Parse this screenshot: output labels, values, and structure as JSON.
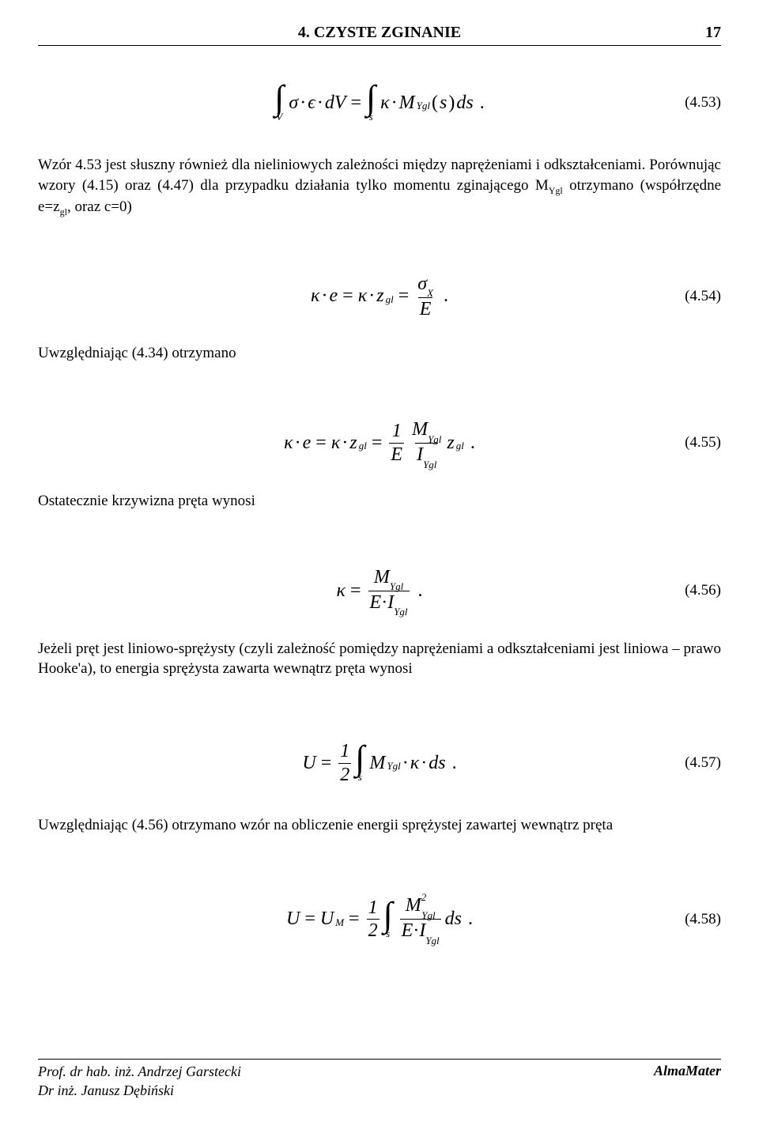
{
  "header": {
    "title": "4. CZYSTE ZGINANIE",
    "page": "17"
  },
  "eq453": {
    "num": "(4.53)",
    "int1_lim": "V",
    "t1a": "σ",
    "t1b": "·",
    "t1c": "ϵ",
    "t1d": "·",
    "t1e": "dV",
    "eqs": "=",
    "int2_lim": "s",
    "t2a": "κ",
    "t2b": "·",
    "t2c": "M",
    "t2sub": "Ygl",
    "lp": "(",
    "t2d": "s",
    "rp": ")",
    "t2e": "ds",
    "dot": "."
  },
  "p1": "Wzór 4.53 jest słuszny również dla nieliniowych zależności między naprężeniami i odkształceniami. Porównując wzory (4.15) oraz (4.47) dla przypadku działania tylko momentu zginającego M",
  "p1_sub": "Ygl",
  "p1b": " otrzymano (współrzędne e=z",
  "p1b_sub": "gl",
  "p1c": ", oraz c=0)",
  "eq454": {
    "num": "(4.54)",
    "a": "κ",
    "b": "·",
    "c": "e",
    "d": "=",
    "e": "κ",
    "f": "·",
    "g": "z",
    "gsub": "gl",
    "h": "=",
    "frac_num_a": "σ",
    "frac_num_sub": "X",
    "frac_den": "E",
    "dot": "."
  },
  "p2": "Uwzględniając (4.34) otrzymano",
  "eq455": {
    "num": "(4.55)",
    "a": "κ",
    "b": "·",
    "c": "e",
    "d": "=",
    "e": "κ",
    "f": "·",
    "g": "z",
    "gsub": "gl",
    "h": "=",
    "f1_num": "1",
    "f1_den": "E",
    "f2_num_a": "M",
    "f2_num_sub": "Ygl",
    "f2_den_a": "I",
    "f2_den_sub": "Ygl",
    "tail_a": "z",
    "tail_sub": "gl",
    "dot": "."
  },
  "p3": "Ostatecznie krzywizna pręta wynosi",
  "eq456": {
    "num": "(4.56)",
    "a": "κ",
    "b": "=",
    "num_a": "M",
    "num_sub": "Ygl",
    "den_a": "E",
    "den_b": "·",
    "den_c": "I",
    "den_sub": "Ygl",
    "dot": "."
  },
  "p4": "Jeżeli pręt jest liniowo-sprężysty (czyli zależność pomiędzy naprężeniami a odkształceniami jest liniowa – prawo Hooke'a), to energia sprężysta zawarta wewnątrz pręta wynosi",
  "eq457": {
    "num": "(4.57)",
    "a": "U",
    "b": "=",
    "f_num": "1",
    "f_den": "2",
    "int_lim": "s",
    "c": "M",
    "csub": "Ygl",
    "d": "·",
    "e": "κ",
    "f": "·",
    "g": "ds",
    "dot": "."
  },
  "p5": "Uwzględniając (4.56) otrzymano wzór na obliczenie energii sprężystej zawartej wewnątrz pręta",
  "eq458": {
    "num": "(4.58)",
    "a": "U",
    "b": "=",
    "c": "U",
    "csub": "M",
    "d": "=",
    "f_num": "1",
    "f_den": "2",
    "int_lim": "s",
    "g2_num_a": "M",
    "g2_num_sup": "2",
    "g2_num_sub": "Ygl",
    "g2_den_a": "E",
    "g2_den_b": "·",
    "g2_den_c": "I",
    "g2_den_sub": "Ygl",
    "tail": "ds",
    "dot": "."
  },
  "footer": {
    "l1": "Prof. dr hab. inż. Andrzej Garstecki",
    "l2": "Dr inż. Janusz Dębiński",
    "r": "AlmaMater"
  }
}
